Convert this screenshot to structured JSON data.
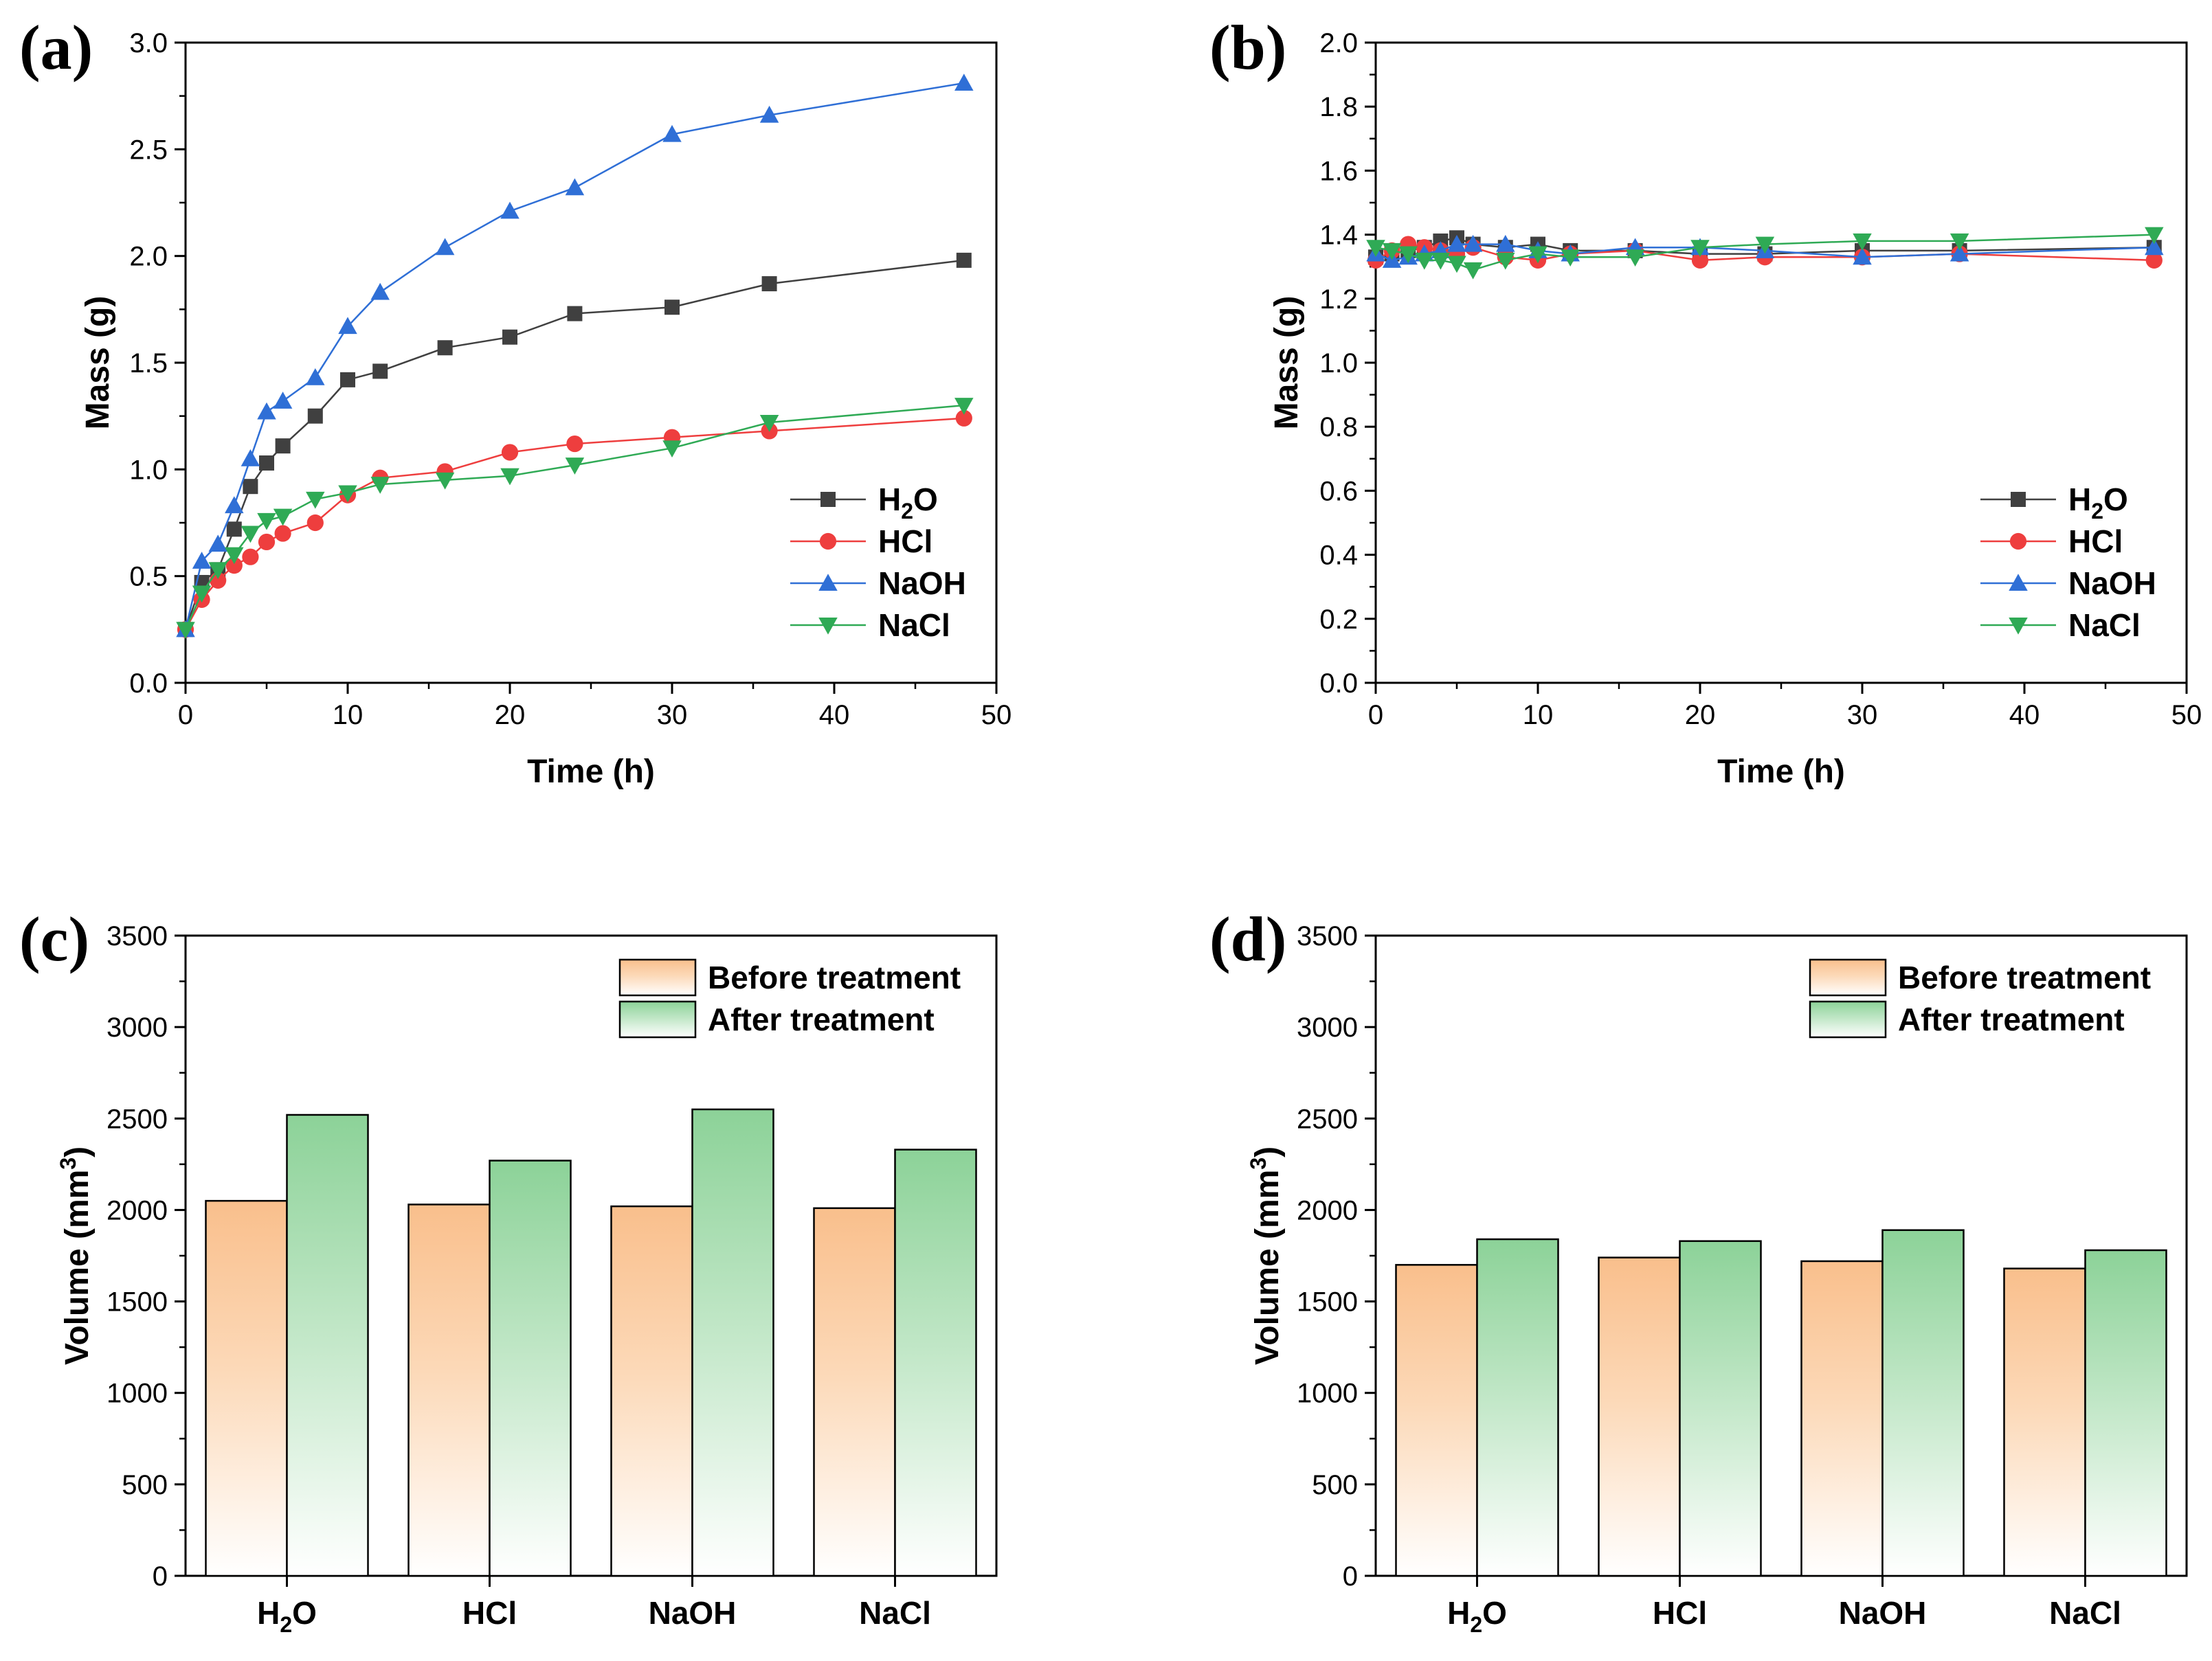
{
  "chart_data": [
    {
      "panel": "(a)",
      "type": "line",
      "xlabel": "Time (h)",
      "ylabel": "Mass (g)",
      "xlim": [
        0,
        50
      ],
      "ylim": [
        0,
        3.0
      ],
      "x_ticks": [
        "0",
        "10",
        "20",
        "30",
        "40",
        "50"
      ],
      "y_ticks": [
        "0.0",
        "0.5",
        "1.0",
        "1.5",
        "2.0",
        "2.5",
        "3.0"
      ],
      "legend_position": "lower-right",
      "series": [
        {
          "name": "H2O",
          "label_main": "H",
          "label_sub": "2",
          "label_tail": "O",
          "color": "#404040",
          "marker": "square",
          "x": [
            0,
            1,
            2,
            3,
            4,
            5,
            6,
            8,
            10,
            12,
            16,
            20,
            24,
            30,
            36,
            48
          ],
          "y": [
            0.25,
            0.47,
            0.53,
            0.72,
            0.92,
            1.03,
            1.11,
            1.25,
            1.42,
            1.46,
            1.57,
            1.62,
            1.73,
            1.76,
            1.87,
            1.98
          ]
        },
        {
          "name": "HCl",
          "label_main": "HCl",
          "color": "#ee3e3e",
          "marker": "circle",
          "x": [
            0,
            1,
            2,
            3,
            4,
            5,
            6,
            8,
            10,
            12,
            16,
            20,
            24,
            30,
            36,
            48
          ],
          "y": [
            0.25,
            0.39,
            0.48,
            0.55,
            0.59,
            0.66,
            0.7,
            0.75,
            0.88,
            0.96,
            0.99,
            1.08,
            1.12,
            1.15,
            1.18,
            1.24
          ]
        },
        {
          "name": "NaOH",
          "label_main": "NaOH",
          "color": "#2f6fd6",
          "marker": "triangle-up",
          "x": [
            0,
            1,
            2,
            3,
            4,
            5,
            6,
            8,
            10,
            12,
            16,
            20,
            24,
            30,
            36,
            48
          ],
          "y": [
            0.25,
            0.57,
            0.65,
            0.83,
            1.05,
            1.27,
            1.32,
            1.43,
            1.67,
            1.83,
            2.04,
            2.21,
            2.32,
            2.57,
            2.66,
            2.81
          ]
        },
        {
          "name": "NaCl",
          "label_main": "NaCl",
          "color": "#2faa55",
          "marker": "triangle-down",
          "x": [
            0,
            1,
            2,
            3,
            4,
            5,
            6,
            8,
            10,
            12,
            16,
            20,
            24,
            30,
            36,
            48
          ],
          "y": [
            0.25,
            0.42,
            0.53,
            0.6,
            0.7,
            0.76,
            0.78,
            0.86,
            0.89,
            0.93,
            0.95,
            0.97,
            1.02,
            1.1,
            1.22,
            1.3
          ]
        }
      ]
    },
    {
      "panel": "(b)",
      "type": "line",
      "xlabel": "Time (h)",
      "ylabel": "Mass (g)",
      "xlim": [
        0,
        50
      ],
      "ylim": [
        0,
        2.0
      ],
      "x_ticks": [
        "0",
        "10",
        "20",
        "30",
        "40",
        "50"
      ],
      "y_ticks": [
        "0.0",
        "0.2",
        "0.4",
        "0.6",
        "0.8",
        "1.0",
        "1.2",
        "1.4",
        "1.6",
        "1.8",
        "2.0"
      ],
      "legend_position": "lower-right",
      "series": [
        {
          "name": "H2O",
          "label_main": "H",
          "label_sub": "2",
          "label_tail": "O",
          "color": "#404040",
          "marker": "square",
          "x": [
            0,
            1,
            2,
            3,
            4,
            5,
            6,
            8,
            10,
            12,
            16,
            20,
            24,
            30,
            36,
            48
          ],
          "y": [
            1.33,
            1.34,
            1.35,
            1.36,
            1.38,
            1.39,
            1.37,
            1.36,
            1.37,
            1.35,
            1.35,
            1.34,
            1.34,
            1.35,
            1.35,
            1.36
          ]
        },
        {
          "name": "HCl",
          "label_main": "HCl",
          "color": "#ee3e3e",
          "marker": "circle",
          "x": [
            0,
            1,
            2,
            3,
            4,
            5,
            6,
            8,
            10,
            12,
            16,
            20,
            24,
            30,
            36,
            48
          ],
          "y": [
            1.32,
            1.35,
            1.37,
            1.36,
            1.35,
            1.34,
            1.36,
            1.33,
            1.32,
            1.34,
            1.35,
            1.32,
            1.33,
            1.33,
            1.34,
            1.32
          ]
        },
        {
          "name": "NaOH",
          "label_main": "NaOH",
          "color": "#2f6fd6",
          "marker": "triangle-up",
          "x": [
            0,
            1,
            2,
            3,
            4,
            5,
            6,
            8,
            10,
            12,
            16,
            20,
            24,
            30,
            36,
            48
          ],
          "y": [
            1.34,
            1.32,
            1.33,
            1.34,
            1.35,
            1.37,
            1.37,
            1.37,
            1.35,
            1.34,
            1.36,
            1.36,
            1.35,
            1.33,
            1.34,
            1.36
          ]
        },
        {
          "name": "NaCl",
          "label_main": "NaCl",
          "color": "#2faa55",
          "marker": "triangle-down",
          "x": [
            0,
            1,
            2,
            3,
            4,
            5,
            6,
            8,
            10,
            12,
            16,
            20,
            24,
            30,
            36,
            48
          ],
          "y": [
            1.36,
            1.35,
            1.34,
            1.32,
            1.32,
            1.31,
            1.29,
            1.32,
            1.34,
            1.33,
            1.33,
            1.36,
            1.37,
            1.38,
            1.38,
            1.4
          ]
        }
      ]
    },
    {
      "panel": "(c)",
      "type": "bar",
      "ylabel_main": "Volume (mm",
      "ylabel_sup": "3",
      "ylabel_tail": ")",
      "ylim": [
        0,
        3500
      ],
      "y_ticks": [
        "0",
        "500",
        "1000",
        "1500",
        "2000",
        "2500",
        "3000",
        "3500"
      ],
      "categories": [
        {
          "main": "H",
          "sub": "2",
          "tail": "O"
        },
        {
          "main": "HCl"
        },
        {
          "main": "NaOH"
        },
        {
          "main": "NaCl"
        }
      ],
      "legend_position": "top-right",
      "series": [
        {
          "name": "Before treatment",
          "color": "#f9c08f",
          "values": [
            2050,
            2030,
            2020,
            2010
          ]
        },
        {
          "name": "After treatment",
          "color": "#8fd39b",
          "values": [
            2520,
            2270,
            2550,
            2330
          ]
        }
      ]
    },
    {
      "panel": "(d)",
      "type": "bar",
      "ylabel_main": "Volume (mm",
      "ylabel_sup": "3",
      "ylabel_tail": ")",
      "ylim": [
        0,
        3500
      ],
      "y_ticks": [
        "0",
        "500",
        "1000",
        "1500",
        "2000",
        "2500",
        "3000",
        "3500"
      ],
      "categories": [
        {
          "main": "H",
          "sub": "2",
          "tail": "O"
        },
        {
          "main": "HCl"
        },
        {
          "main": "NaOH"
        },
        {
          "main": "NaCl"
        }
      ],
      "legend_position": "top-right",
      "series": [
        {
          "name": "Before treatment",
          "color": "#f9c08f",
          "values": [
            1700,
            1740,
            1720,
            1680
          ]
        },
        {
          "name": "After treatment",
          "color": "#8fd39b",
          "values": [
            1840,
            1830,
            1890,
            1780
          ]
        }
      ]
    }
  ]
}
